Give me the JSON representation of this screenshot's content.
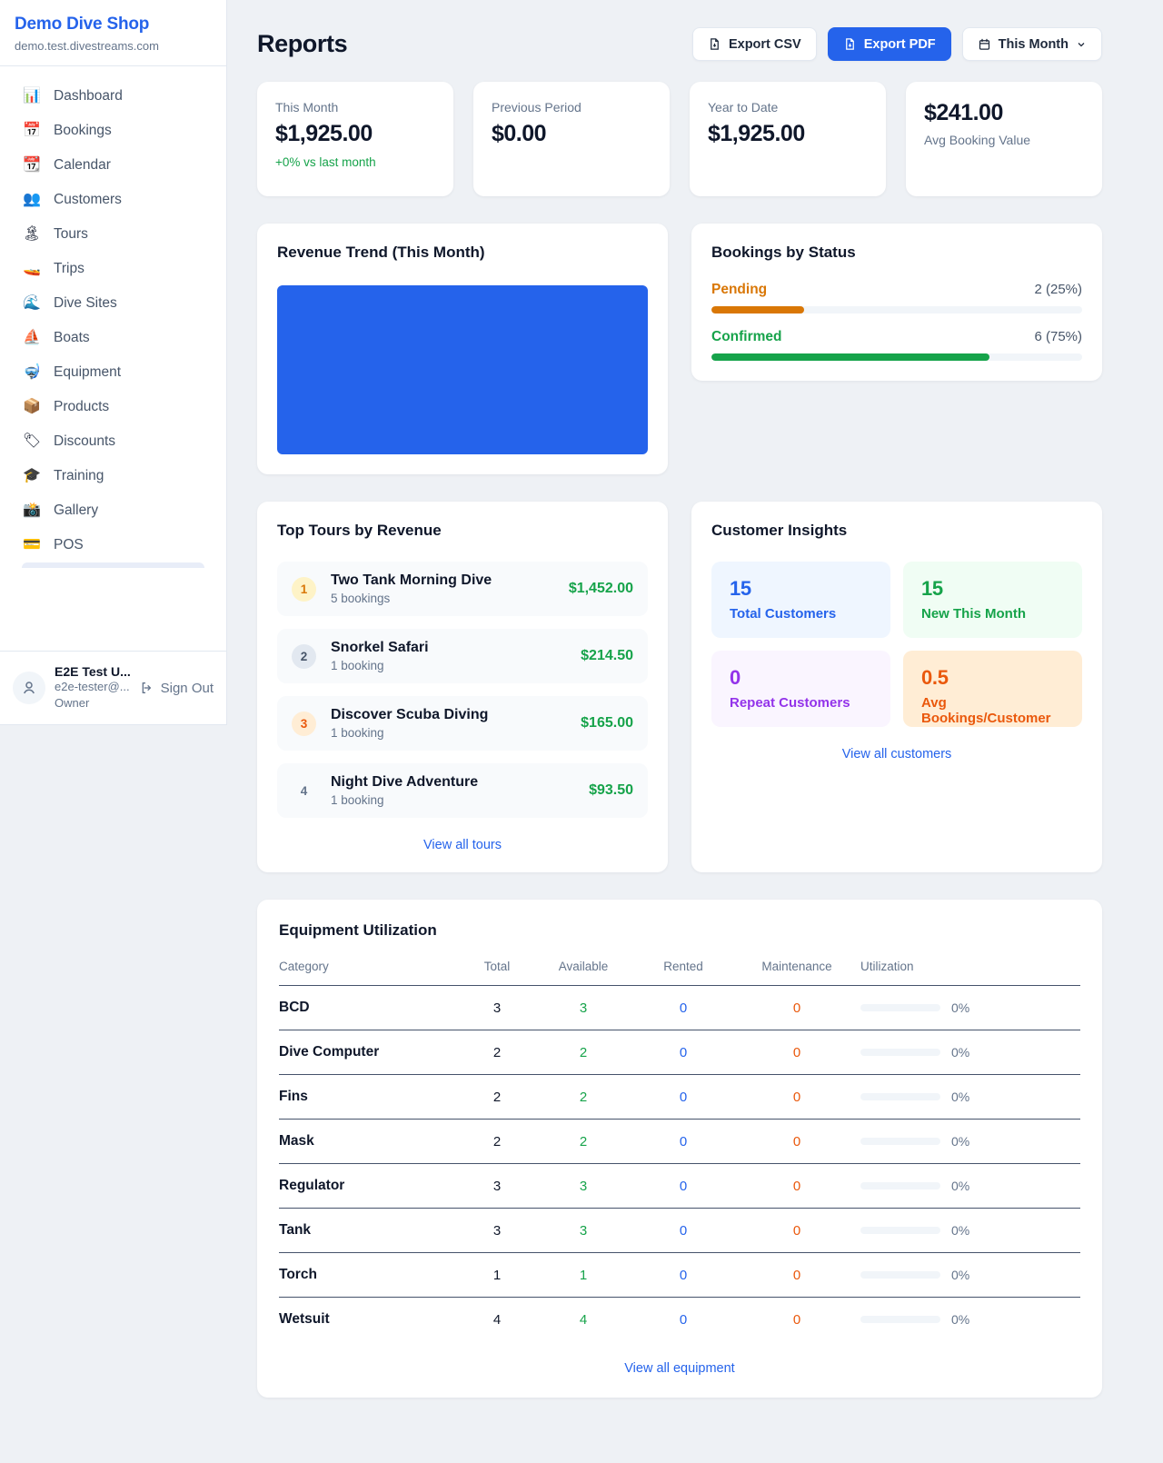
{
  "colors": {
    "accent": "#2563eb",
    "green": "#16a34a",
    "amber": "#d97706",
    "orange": "#ea580c",
    "purple": "#9333ea"
  },
  "sidebar": {
    "brand": {
      "name": "Demo Dive Shop",
      "domain": "demo.test.divestreams.com"
    },
    "items": [
      {
        "icon": "📊",
        "label": "Dashboard"
      },
      {
        "icon": "📅",
        "label": "Bookings"
      },
      {
        "icon": "📆",
        "label": "Calendar"
      },
      {
        "icon": "👥",
        "label": "Customers"
      },
      {
        "icon": "🏝",
        "label": "Tours"
      },
      {
        "icon": "🚤",
        "label": "Trips"
      },
      {
        "icon": "🌊",
        "label": "Dive Sites"
      },
      {
        "icon": "⛵",
        "label": "Boats"
      },
      {
        "icon": "🤿",
        "label": "Equipment"
      },
      {
        "icon": "📦",
        "label": "Products"
      },
      {
        "icon": "🏷",
        "label": "Discounts"
      },
      {
        "icon": "🎓",
        "label": "Training"
      },
      {
        "icon": "📸",
        "label": "Gallery"
      },
      {
        "icon": "💳",
        "label": "POS"
      }
    ],
    "user": {
      "name": "E2E Test U...",
      "email": "e2e-tester@...",
      "role": "Owner",
      "sign_out_label": "Sign Out"
    }
  },
  "header": {
    "title": "Reports",
    "export_csv_label": "Export CSV",
    "export_pdf_label": "Export PDF",
    "period_label": "This Month"
  },
  "stats": [
    {
      "label": "This Month",
      "value": "$1,925.00",
      "delta": "+0% vs last month"
    },
    {
      "label": "Previous Period",
      "value": "$0.00"
    },
    {
      "label": "Year to Date",
      "value": "$1,925.00"
    },
    {
      "label": "Avg Booking Value",
      "value": "$241.00"
    }
  ],
  "revenue_trend": {
    "title": "Revenue Trend (This Month)"
  },
  "bookings_by_status": {
    "title": "Bookings by Status",
    "rows": [
      {
        "label": "Pending",
        "count_label": "2 (25%)",
        "pct": 25
      },
      {
        "label": "Confirmed",
        "count_label": "6 (75%)",
        "pct": 75
      }
    ]
  },
  "top_tours": {
    "title": "Top Tours by Revenue",
    "rows": [
      {
        "rank": "1",
        "name": "Two Tank Morning Dive",
        "bookings": "5 bookings",
        "revenue": "$1,452.00"
      },
      {
        "rank": "2",
        "name": "Snorkel Safari",
        "bookings": "1 booking",
        "revenue": "$214.50"
      },
      {
        "rank": "3",
        "name": "Discover Scuba Diving",
        "bookings": "1 booking",
        "revenue": "$165.00"
      },
      {
        "rank": "4",
        "name": "Night Dive Adventure",
        "bookings": "1 booking",
        "revenue": "$93.50"
      }
    ],
    "view_all_label": "View all tours"
  },
  "customer_insights": {
    "title": "Customer Insights",
    "tiles": [
      {
        "value": "15",
        "label": "Total Customers"
      },
      {
        "value": "15",
        "label": "New This Month"
      },
      {
        "value": "0",
        "label": "Repeat Customers"
      },
      {
        "value": "0.5",
        "label": "Avg Bookings/Customer"
      }
    ],
    "view_all_label": "View all customers"
  },
  "equipment": {
    "title": "Equipment Utilization",
    "columns": [
      "Category",
      "Total",
      "Available",
      "Rented",
      "Maintenance",
      "Utilization"
    ],
    "rows": [
      {
        "category": "BCD",
        "total": "3",
        "available": "3",
        "rented": "0",
        "maintenance": "0",
        "utilization_label": "0%",
        "utilization_pct": 0
      },
      {
        "category": "Dive Computer",
        "total": "2",
        "available": "2",
        "rented": "0",
        "maintenance": "0",
        "utilization_label": "0%",
        "utilization_pct": 0
      },
      {
        "category": "Fins",
        "total": "2",
        "available": "2",
        "rented": "0",
        "maintenance": "0",
        "utilization_label": "0%",
        "utilization_pct": 0
      },
      {
        "category": "Mask",
        "total": "2",
        "available": "2",
        "rented": "0",
        "maintenance": "0",
        "utilization_label": "0%",
        "utilization_pct": 0
      },
      {
        "category": "Regulator",
        "total": "3",
        "available": "3",
        "rented": "0",
        "maintenance": "0",
        "utilization_label": "0%",
        "utilization_pct": 0
      },
      {
        "category": "Tank",
        "total": "3",
        "available": "3",
        "rented": "0",
        "maintenance": "0",
        "utilization_label": "0%",
        "utilization_pct": 0
      },
      {
        "category": "Torch",
        "total": "1",
        "available": "1",
        "rented": "0",
        "maintenance": "0",
        "utilization_label": "0%",
        "utilization_pct": 0
      },
      {
        "category": "Wetsuit",
        "total": "4",
        "available": "4",
        "rented": "0",
        "maintenance": "0",
        "utilization_label": "0%",
        "utilization_pct": 0
      }
    ],
    "view_all_label": "View all equipment"
  }
}
